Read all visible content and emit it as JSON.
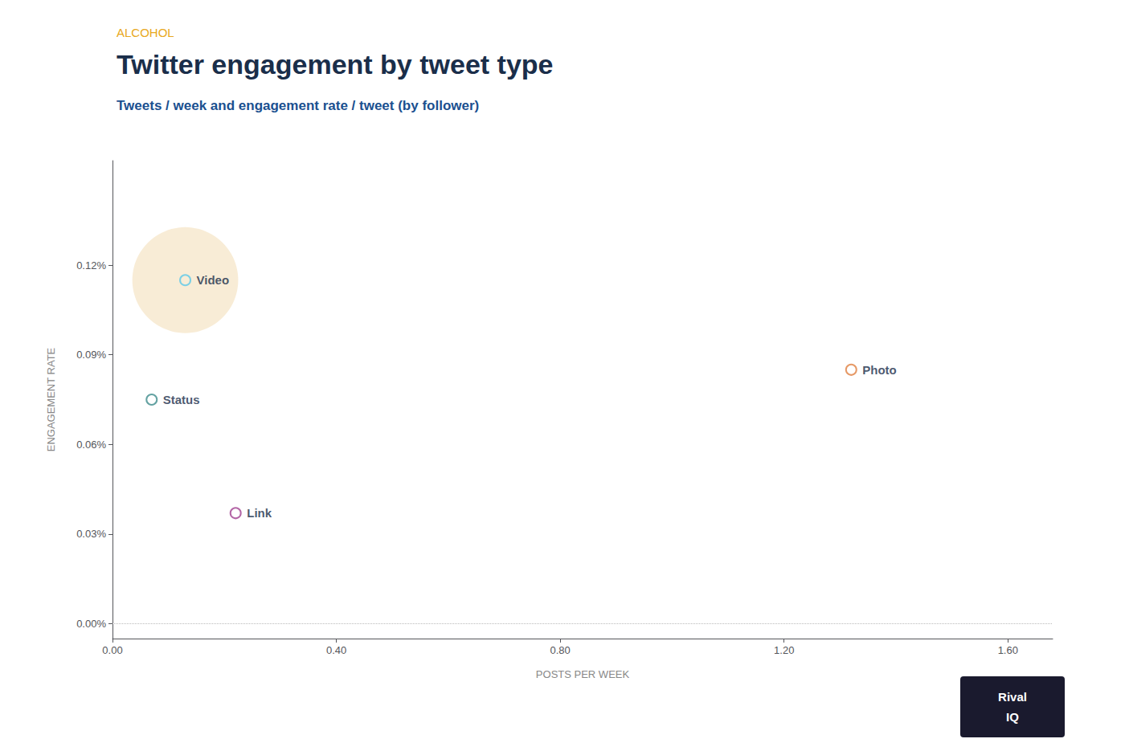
{
  "chart_data": {
    "type": "scatter",
    "title": "Twitter engagement by tweet type",
    "subtitle": "Tweets / week and engagement rate / tweet (by follower)",
    "x": [
      0.13,
      0.07,
      0.22,
      1.32
    ],
    "values": [
      0.00115,
      0.00075,
      0.00037,
      0.00085
    ],
    "colors": [
      "#5bc8e8",
      "#3d8b8b",
      "#a04090",
      "#e08040"
    ],
    "marker": "circle",
    "bubbles": [
      {
        "x": 0.13,
        "y": 0.00115,
        "size": 9000,
        "color": "#f5e6c8"
      }
    ],
    "annotations": [
      {
        "text": "Video",
        "x": 0.13,
        "y": 0.00115
      },
      {
        "text": "Status",
        "x": 0.07,
        "y": 0.00075
      },
      {
        "text": "Link",
        "x": 0.22,
        "y": 0.00037
      },
      {
        "text": "Photo",
        "x": 1.32,
        "y": 0.00085
      },
      {
        "text": "ALCOHOL"
      },
      {
        "text": "Rival"
      },
      {
        "text": "IQ"
      }
    ],
    "xlabel": "POSTS PER WEEK",
    "ylabel": "ENGAGEMENT RATE",
    "xlim": [
      0.0,
      1.68
    ],
    "ylim": [
      -5e-05,
      0.00155
    ],
    "xticks": [
      {
        "value": 0.0,
        "label": "0.00"
      },
      {
        "value": 0.4,
        "label": "0.40"
      },
      {
        "value": 0.8,
        "label": "0.80"
      },
      {
        "value": 1.2,
        "label": "1.20"
      },
      {
        "value": 1.6,
        "label": "1.60"
      }
    ],
    "yticks": [
      {
        "value": 0.0,
        "label": "0.00%"
      },
      {
        "value": 0.0003,
        "label": "0.03%"
      },
      {
        "value": 0.0006,
        "label": "0.06%"
      },
      {
        "value": 0.0009,
        "label": "0.09%"
      },
      {
        "value": 0.0012,
        "label": "0.12%"
      }
    ],
    "grid": "y"
  }
}
